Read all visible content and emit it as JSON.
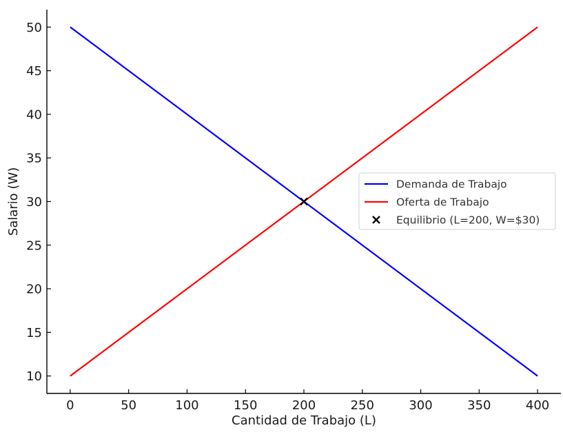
{
  "chart_data": {
    "type": "line",
    "title": "",
    "xlabel": "Cantidad de Trabajo (L)",
    "ylabel": "Salario (W)",
    "xlim": [
      -20,
      420
    ],
    "ylim": [
      8,
      52
    ],
    "x_ticks": [
      0,
      50,
      100,
      150,
      200,
      250,
      300,
      350,
      400
    ],
    "y_ticks": [
      10,
      15,
      20,
      25,
      30,
      35,
      40,
      45,
      50
    ],
    "x_tick_labels": [
      "0",
      "50",
      "100",
      "150",
      "200",
      "250",
      "300",
      "350",
      "400"
    ],
    "y_tick_labels": [
      "10",
      "15",
      "20",
      "25",
      "30",
      "35",
      "40",
      "45",
      "50"
    ],
    "grid": false,
    "legend_position": "right",
    "series": [
      {
        "name": "Demanda de Trabajo",
        "color": "#0000ff",
        "kind": "line",
        "x": [
          0,
          400
        ],
        "y": [
          50,
          10
        ]
      },
      {
        "name": "Oferta de Trabajo",
        "color": "#ff0000",
        "kind": "line",
        "x": [
          0,
          400
        ],
        "y": [
          10,
          50
        ]
      },
      {
        "name": "Equilibrio (L=200, W=$30)",
        "color": "#000000",
        "kind": "marker",
        "marker": "x",
        "x": [
          200
        ],
        "y": [
          30
        ]
      }
    ]
  }
}
